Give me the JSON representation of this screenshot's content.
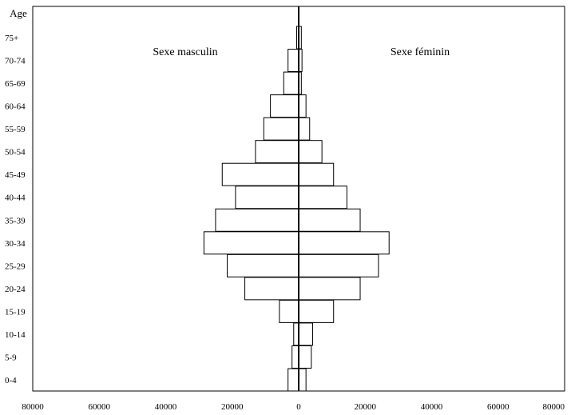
{
  "chart_data": {
    "type": "bar",
    "orientation": "horizontal-pyramid",
    "ylabel": "Age",
    "xlim": [
      -80000,
      80000
    ],
    "xticks": [
      "80000",
      "60000",
      "40000",
      "20000",
      "0",
      "20000",
      "40000",
      "60000",
      "80000"
    ],
    "categories": [
      "0-4",
      "5-9",
      "10-14",
      "15-19",
      "20-24",
      "25-29",
      "30-34",
      "35-39",
      "40-44",
      "45-49",
      "50-54",
      "55-59",
      "60-64",
      "65-69",
      "70-74",
      "75+"
    ],
    "series": [
      {
        "name": "Sexe masculin",
        "side": "left",
        "values": [
          3200,
          2000,
          1500,
          5800,
          16200,
          21500,
          28500,
          25000,
          19000,
          23000,
          13000,
          10500,
          8500,
          4500,
          3200,
          600
        ]
      },
      {
        "name": "Sexe féminin",
        "side": "right",
        "values": [
          2200,
          3800,
          4200,
          10500,
          18500,
          24000,
          27200,
          18500,
          14500,
          10500,
          7000,
          3300,
          2200,
          800,
          1000,
          800
        ]
      }
    ],
    "grid": false,
    "legend": "inline-top"
  }
}
